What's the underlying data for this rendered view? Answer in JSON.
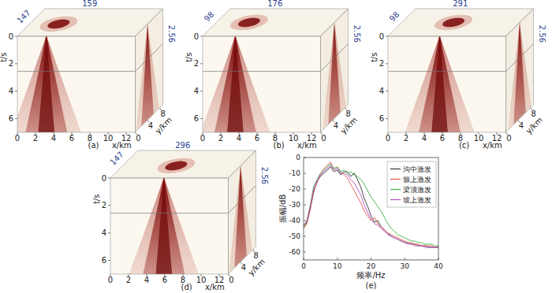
{
  "chart_data": [
    {
      "type": "cube",
      "label": "(a)",
      "inline": 147,
      "crossline": 159,
      "time_slice": 2.56,
      "source": {
        "x": 3.2,
        "y": 4
      },
      "x_label": "x/km",
      "y_label": "y/km",
      "t_label": "t/s",
      "xlim": [
        0,
        13
      ],
      "xticks": [
        0,
        2,
        4,
        6,
        8,
        10,
        12
      ],
      "ylim": [
        0,
        9
      ],
      "yticks": [
        0,
        4,
        8
      ],
      "tlim": [
        0,
        7
      ],
      "tticks": [
        0,
        2,
        4,
        6
      ]
    },
    {
      "type": "cube",
      "label": "(b)",
      "inline": 98,
      "crossline": 176,
      "time_slice": 2.56,
      "source": {
        "x": 3.6,
        "y": 4.5
      },
      "x_label": "x/km",
      "y_label": "y/km",
      "t_label": "t/s",
      "xlim": [
        0,
        13
      ],
      "xticks": [
        0,
        2,
        4,
        6,
        8,
        10,
        12
      ],
      "ylim": [
        0,
        9
      ],
      "yticks": [
        0,
        4,
        8
      ],
      "tlim": [
        0,
        7
      ],
      "tticks": [
        0,
        2,
        4,
        6
      ]
    },
    {
      "type": "cube",
      "label": "(c)",
      "inline": 98,
      "crossline": 291,
      "time_slice": 2.56,
      "source": {
        "x": 5.7,
        "y": 4.5
      },
      "x_label": "x/km",
      "y_label": "y/km",
      "t_label": "t/s",
      "xlim": [
        0,
        13
      ],
      "xticks": [
        0,
        2,
        4,
        6,
        8,
        10,
        12
      ],
      "ylim": [
        0,
        9
      ],
      "yticks": [
        0,
        4,
        8
      ],
      "tlim": [
        0,
        7
      ],
      "tticks": [
        0,
        2,
        4,
        6
      ]
    },
    {
      "type": "cube",
      "label": "(d)",
      "inline": 147,
      "crossline": 296,
      "time_slice": 2.56,
      "source": {
        "x": 5.9,
        "y": 4
      },
      "x_label": "x/km",
      "y_label": "y/km",
      "t_label": "t/s",
      "xlim": [
        0,
        13
      ],
      "xticks": [
        0,
        2,
        4,
        6,
        8,
        10,
        12
      ],
      "ylim": [
        0,
        9
      ],
      "yticks": [
        0,
        4,
        8
      ],
      "tlim": [
        0,
        7
      ],
      "tticks": [
        0,
        2,
        4,
        6
      ]
    },
    {
      "type": "line",
      "label": "(e)",
      "x_label": "频率/Hz",
      "y_label": "振幅/dB",
      "x": [
        0,
        1,
        2,
        3,
        4,
        5,
        6,
        7,
        8,
        9,
        10,
        11,
        12,
        13,
        14,
        15,
        16,
        17,
        18,
        19,
        20,
        21,
        22,
        23,
        24,
        25,
        26,
        27,
        28,
        29,
        30,
        31,
        32,
        33,
        34,
        35,
        36,
        37,
        38,
        39,
        40
      ],
      "series": [
        {
          "name": "沟中激发",
          "color": "#333333",
          "values": [
            -44,
            -41,
            -32,
            -22,
            -15,
            -12,
            -10,
            -8,
            -6,
            -9,
            -8,
            -11,
            -9,
            -9,
            -12,
            -10,
            -14,
            -19,
            -26,
            -31,
            -37,
            -41,
            -40,
            -44,
            -46,
            -48,
            -50,
            -51,
            -52,
            -53,
            -54,
            -54,
            -55,
            -55,
            -56,
            -56,
            -56,
            -57,
            -57,
            -57,
            -57
          ]
        },
        {
          "name": "塬上激发",
          "color": "#e8524a",
          "values": [
            -45,
            -42,
            -33,
            -21,
            -16,
            -11,
            -7,
            -5,
            -3,
            -7,
            -6,
            -9,
            -11,
            -13,
            -17,
            -21,
            -25,
            -29,
            -34,
            -37,
            -40,
            -38,
            -42,
            -44,
            -46,
            -48,
            -49,
            -50,
            -51,
            -52,
            -53,
            -54,
            -54,
            -55,
            -55,
            -56,
            -56,
            -56,
            -56,
            -57,
            -57
          ]
        },
        {
          "name": "梁顶激发",
          "color": "#3cb34a",
          "values": [
            -44,
            -40,
            -30,
            -18,
            -14,
            -10,
            -8,
            -6,
            -4,
            -7,
            -6,
            -9,
            -8,
            -10,
            -9,
            -11,
            -12,
            -14,
            -17,
            -21,
            -25,
            -28,
            -31,
            -34,
            -38,
            -42,
            -45,
            -47,
            -49,
            -50,
            -51,
            -52,
            -53,
            -53,
            -54,
            -54,
            -55,
            -55,
            -55,
            -56,
            -56
          ]
        },
        {
          "name": "坡上激发",
          "color": "#b34fc0",
          "values": [
            -43,
            -40,
            -31,
            -20,
            -15,
            -11,
            -9,
            -7,
            -5,
            -8,
            -7,
            -10,
            -10,
            -11,
            -14,
            -16,
            -20,
            -24,
            -30,
            -35,
            -39,
            -42,
            -43,
            -45,
            -47,
            -49,
            -50,
            -51,
            -52,
            -53,
            -54,
            -55,
            -55,
            -56,
            -56,
            -56,
            -57,
            -57,
            -57,
            -57,
            -57
          ]
        }
      ],
      "xlim": [
        0,
        40
      ],
      "xticks": [
        0,
        10,
        20,
        30,
        40
      ],
      "ylim": [
        -65,
        0
      ],
      "yticks": [
        0,
        -10,
        -20,
        -30,
        -40,
        -50,
        -60
      ],
      "legend": "upper right",
      "grid": false
    }
  ]
}
